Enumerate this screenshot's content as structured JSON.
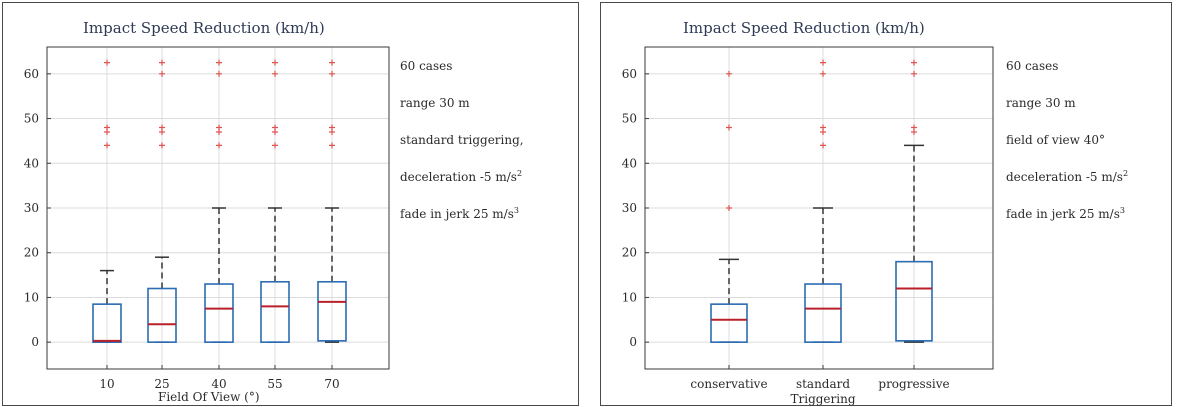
{
  "chart_data": [
    {
      "type": "box",
      "title": "Impact Speed Reduction (km/h)",
      "xlabel": "Field Of View (°)",
      "ylabel": "",
      "ylim": [
        -6,
        66
      ],
      "yticks": [
        0,
        10,
        20,
        30,
        40,
        50,
        60
      ],
      "grid": true,
      "categories": [
        "10",
        "25",
        "40",
        "55",
        "70"
      ],
      "boxes": [
        {
          "whisker_low": 0,
          "q1": 0,
          "median": 0.3,
          "q3": 8.5,
          "whisker_high": 16,
          "outliers": [
            44,
            47,
            48,
            62.5
          ]
        },
        {
          "whisker_low": 0,
          "q1": 0,
          "median": 4,
          "q3": 12,
          "whisker_high": 19,
          "outliers": [
            44,
            47,
            48,
            60,
            62.5
          ]
        },
        {
          "whisker_low": 0,
          "q1": 0,
          "median": 7.5,
          "q3": 13,
          "whisker_high": 30,
          "outliers": [
            44,
            47,
            48,
            60,
            62.5
          ]
        },
        {
          "whisker_low": 0,
          "q1": 0,
          "median": 8,
          "q3": 13.5,
          "whisker_high": 30,
          "outliers": [
            44,
            47,
            48,
            60,
            62.5
          ]
        },
        {
          "whisker_low": 0,
          "q1": 0.3,
          "median": 9,
          "q3": 13.5,
          "whisker_high": 30,
          "outliers": [
            44,
            47,
            48,
            60,
            62.5
          ]
        }
      ],
      "annotations": [
        "60 cases",
        "range 30 m",
        "standard triggering,",
        "deceleration -5 m/s²",
        "fade in jerk 25 m/s³"
      ],
      "colors": {
        "box": "#2b6cb3",
        "median": "#b8202a",
        "outlier": "#e0534f",
        "whisker": "#333333"
      }
    },
    {
      "type": "box",
      "title": "Impact Speed Reduction (km/h)",
      "xlabel": "",
      "ylabel": "",
      "ylim": [
        -6,
        66
      ],
      "yticks": [
        0,
        10,
        20,
        30,
        40,
        50,
        60
      ],
      "grid": true,
      "categories": [
        "conservative",
        "standard\nTriggering",
        "progressive"
      ],
      "boxes": [
        {
          "whisker_low": 0,
          "q1": 0,
          "median": 5,
          "q3": 8.5,
          "whisker_high": 18.5,
          "outliers": [
            30,
            48,
            60
          ]
        },
        {
          "whisker_low": 0,
          "q1": 0,
          "median": 7.5,
          "q3": 13,
          "whisker_high": 30,
          "outliers": [
            44,
            47,
            48,
            60,
            62.5
          ]
        },
        {
          "whisker_low": 0,
          "q1": 0.3,
          "median": 12,
          "q3": 18,
          "whisker_high": 44,
          "outliers": [
            47,
            48,
            60,
            62.5
          ]
        }
      ],
      "annotations": [
        "60 cases",
        "range 30 m",
        "field of view 40°",
        "deceleration -5 m/s²",
        "fade in jerk 25 m/s³"
      ],
      "colors": {
        "box": "#2b6cb3",
        "median": "#b8202a",
        "outlier": "#e0534f",
        "whisker": "#333333"
      }
    }
  ]
}
